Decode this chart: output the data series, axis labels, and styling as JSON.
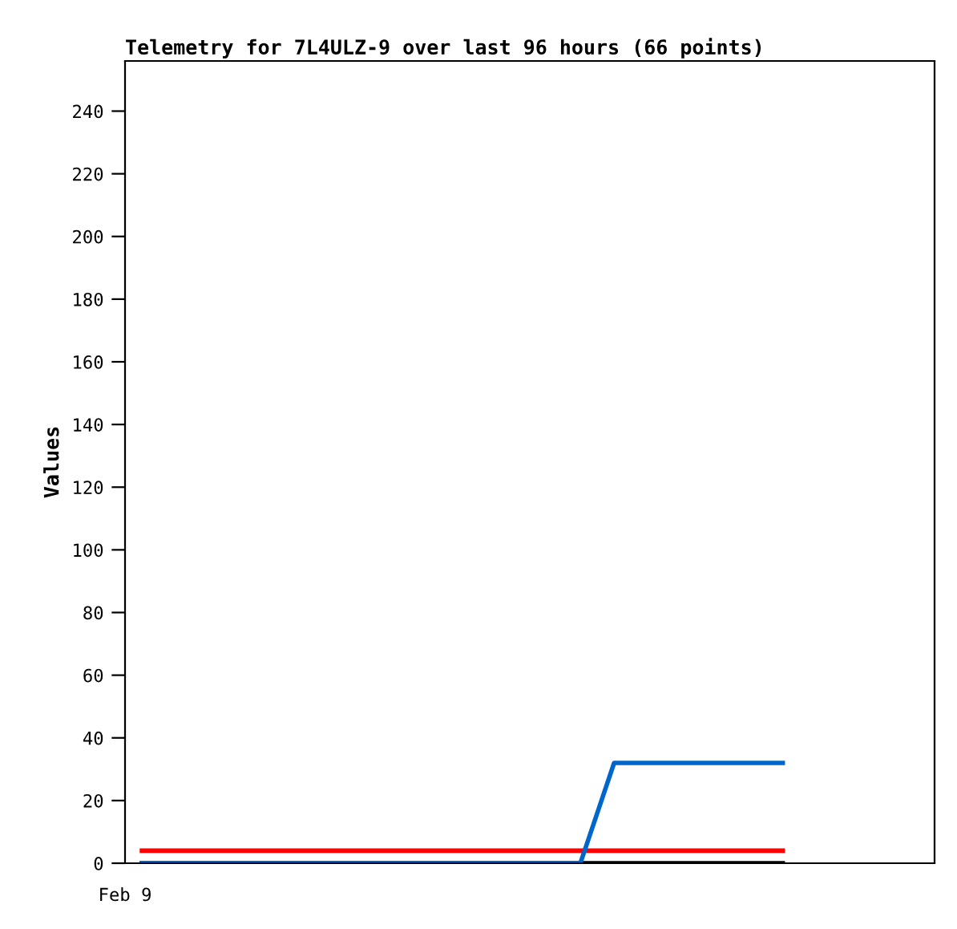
{
  "chart_data": {
    "type": "line",
    "title": "Telemetry for 7L4ULZ-9 over last 96 hours (66 points)",
    "ylabel": "Values",
    "annotations": [
      "Feb 9"
    ],
    "categories": [
      null,
      null,
      null,
      null,
      null,
      null,
      null,
      null,
      null,
      null,
      null,
      null,
      null,
      null,
      null,
      null,
      null,
      null,
      null,
      null,
      null,
      null,
      null,
      null
    ],
    "ylim": [
      0,
      256
    ],
    "yticks": [
      0,
      20,
      40,
      60,
      80,
      100,
      120,
      140,
      160,
      180,
      200,
      220,
      240
    ],
    "grid": false,
    "marker": "none",
    "line_style": "solid",
    "series": [
      {
        "color": "#ff0000",
        "values": [
          4,
          4,
          4,
          4,
          4,
          4,
          4,
          4,
          4,
          4,
          4,
          4,
          4,
          4,
          4,
          4,
          4,
          4,
          4,
          4,
          null,
          null,
          null,
          null
        ]
      },
      {
        "color": "#000000",
        "values": [
          0,
          0,
          0,
          0,
          0,
          0,
          0,
          0,
          0,
          0,
          0,
          0,
          0,
          0,
          0,
          0,
          0,
          0,
          0,
          0,
          null,
          null,
          null,
          null
        ]
      },
      {
        "color": "#0066cc",
        "values": [
          0,
          0,
          0,
          0,
          0,
          0,
          0,
          0,
          0,
          0,
          0,
          0,
          0,
          0,
          32,
          32,
          32,
          32,
          32,
          32,
          null,
          null,
          null,
          null
        ]
      }
    ]
  }
}
